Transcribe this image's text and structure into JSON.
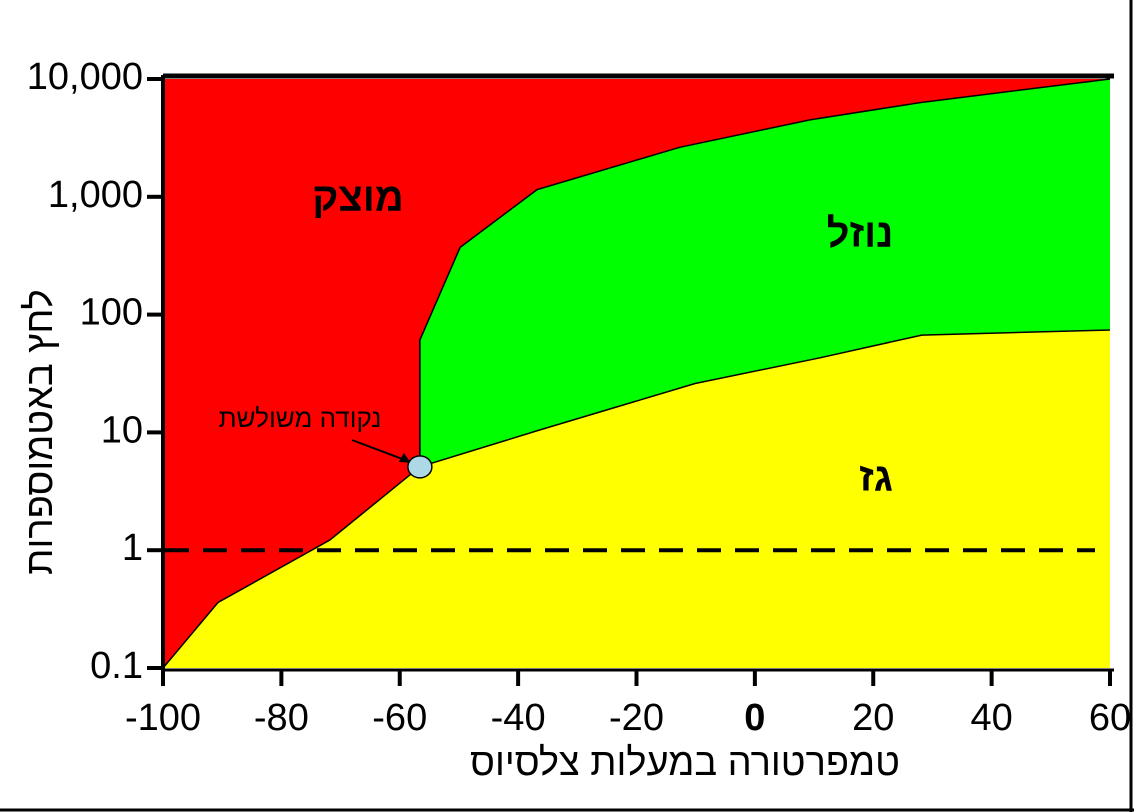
{
  "chart_data": {
    "type": "phase",
    "x_label": "טמפרטורה במעלות צלסיוס",
    "y_label": "לחץ באטמוספרות",
    "log_y": true,
    "xlim": [
      -100,
      60
    ],
    "ylim": [
      0.1,
      10000
    ],
    "xticks": [
      -100,
      -80,
      -60,
      -40,
      -20,
      0,
      20,
      40,
      60
    ],
    "yticks": [
      0.1,
      1,
      10,
      100,
      {
        "value": 1000,
        "label": "1,000"
      },
      {
        "value": 10000,
        "label": "10,000"
      }
    ],
    "regions": [
      {
        "label": "מוצק",
        "color": "#ff0000"
      },
      {
        "label": "נוזל",
        "color": "#00ff00"
      },
      {
        "label": "גז",
        "color": "#ffff00"
      }
    ],
    "curves": [
      {
        "x": [
          -100,
          -90.7,
          -71.8,
          -56.6
        ],
        "y": [
          0.1,
          0.36,
          1.22,
          5.1
        ]
      },
      {
        "x": [
          -56.6,
          -56.6,
          -49.8,
          -36.8,
          -12.7,
          9.3,
          27.9,
          60
        ],
        "y": [
          5.1,
          61,
          372,
          1150,
          2630,
          4500,
          6300,
          10000
        ]
      },
      {
        "x": [
          -56.6,
          -36.3,
          -10.1,
          11,
          28.2,
          60
        ],
        "y": [
          5.1,
          10.5,
          26,
          43,
          67,
          74
        ]
      }
    ],
    "reference_line": 1,
    "triple_point": {
      "x": -56.6,
      "y": 5.1,
      "label": "נקודה משולשת",
      "color": "#add8e6"
    }
  }
}
